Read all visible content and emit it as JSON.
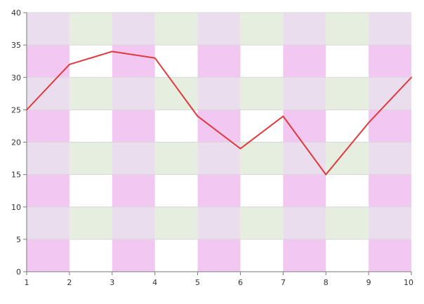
{
  "chart_data": {
    "type": "line",
    "title": "",
    "xlabel": "",
    "ylabel": "",
    "x": [
      1,
      2,
      3,
      4,
      5,
      6,
      7,
      8,
      9,
      10
    ],
    "x_tick_labels": [
      "1",
      "2",
      "3",
      "4",
      "5",
      "6",
      "7",
      "8",
      "9",
      "10"
    ],
    "y_tick_labels": [
      "0",
      "5",
      "10",
      "15",
      "20",
      "25",
      "30",
      "35",
      "40"
    ],
    "xlim": [
      1,
      10
    ],
    "ylim": [
      0,
      40
    ],
    "grid": true,
    "series": [
      {
        "values": [
          25,
          32,
          34,
          33,
          24,
          19,
          24,
          15,
          23,
          30
        ],
        "color": "#e0393e"
      }
    ],
    "background_bands": {
      "vertical_band_color": "#f2c8f2",
      "horizontal_band_color": "#e6eee0",
      "overlap_color": "#eadeee"
    }
  }
}
